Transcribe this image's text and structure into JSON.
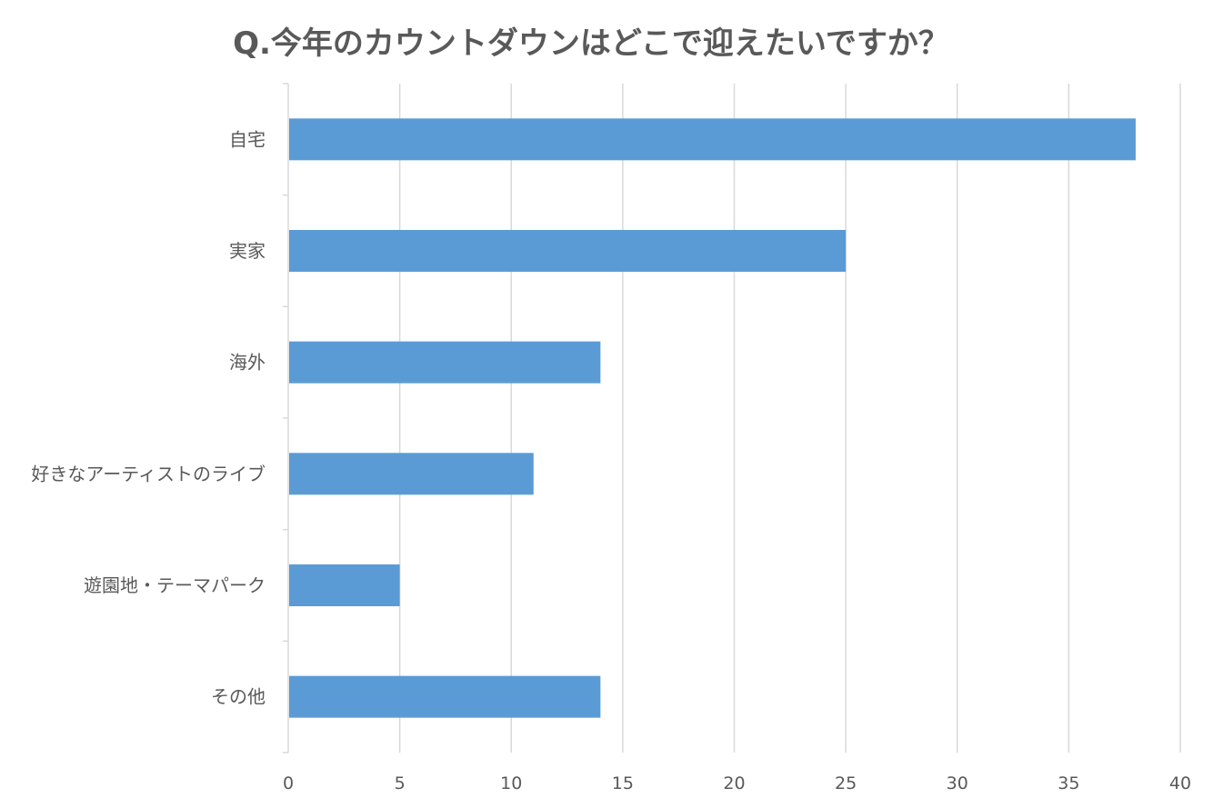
{
  "chart_data": {
    "type": "bar",
    "orientation": "horizontal",
    "title": "Q.今年のカウントダウンはどこで迎えたいですか？",
    "categories": [
      "自宅",
      "実家",
      "海外",
      "好きなアーティストのライブ",
      "遊園地・テーマパーク",
      "その他"
    ],
    "series": [
      {
        "values": [
          38,
          25,
          14,
          11,
          5,
          14
        ],
        "color": "#5b9bd5"
      }
    ],
    "xlim": [
      0,
      40
    ],
    "xticks": [
      0,
      5,
      10,
      15,
      20,
      25,
      30,
      35,
      40
    ],
    "xlabel": "",
    "ylabel": "",
    "grid": "vertical",
    "legend": "none"
  },
  "colors": {
    "bar": "#5b9bd5",
    "grid": "#d9d9d9",
    "text": "#595959"
  }
}
